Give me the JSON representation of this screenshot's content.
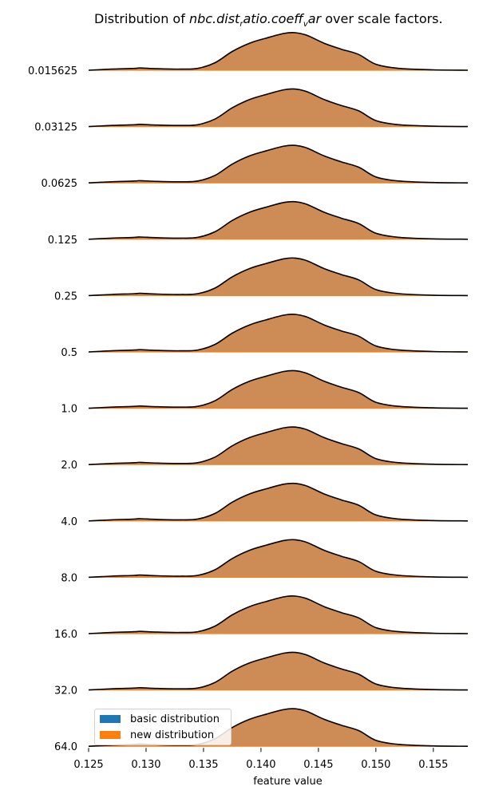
{
  "chart_data": {
    "type": "area",
    "title_parts": {
      "prefix": "Distribution of ",
      "var_a": "nbc.dist",
      "sub_a": "r",
      "var_b": "atio.coeff",
      "sub_b": "v",
      "var_c": "ar",
      "suffix": " over scale factors."
    },
    "xlabel": "feature value",
    "xlim": [
      0.125,
      0.158
    ],
    "xticks": [
      "0.125",
      "0.130",
      "0.135",
      "0.140",
      "0.145",
      "0.150",
      "0.155"
    ],
    "xtick_values": [
      0.125,
      0.13,
      0.135,
      0.14,
      0.145,
      0.15,
      0.155
    ],
    "scale_factors": [
      "0.015625",
      "0.03125",
      "0.0625",
      "0.125",
      "0.25",
      "0.5",
      "1.0",
      "2.0",
      "4.0",
      "8.0",
      "16.0",
      "32.0",
      "64.0"
    ],
    "density_x": [
      0.125,
      0.127,
      0.129,
      0.1295,
      0.131,
      0.133,
      0.1345,
      0.136,
      0.1375,
      0.139,
      0.1405,
      0.142,
      0.143,
      0.144,
      0.1455,
      0.147,
      0.1485,
      0.15,
      0.152,
      0.155,
      0.158
    ],
    "density_y": [
      0.0,
      0.03,
      0.05,
      0.06,
      0.04,
      0.03,
      0.05,
      0.2,
      0.5,
      0.72,
      0.86,
      0.98,
      1.0,
      0.93,
      0.72,
      0.56,
      0.42,
      0.16,
      0.05,
      0.01,
      0.0
    ],
    "series": [
      {
        "name": "basic distribution",
        "color": "#1f77b4"
      },
      {
        "name": "new distribution",
        "color": "#ff7f0e"
      }
    ],
    "overlap_fill_color": "#cd8b55",
    "outline_color": "#000000",
    "legend_position": "lower-left"
  }
}
